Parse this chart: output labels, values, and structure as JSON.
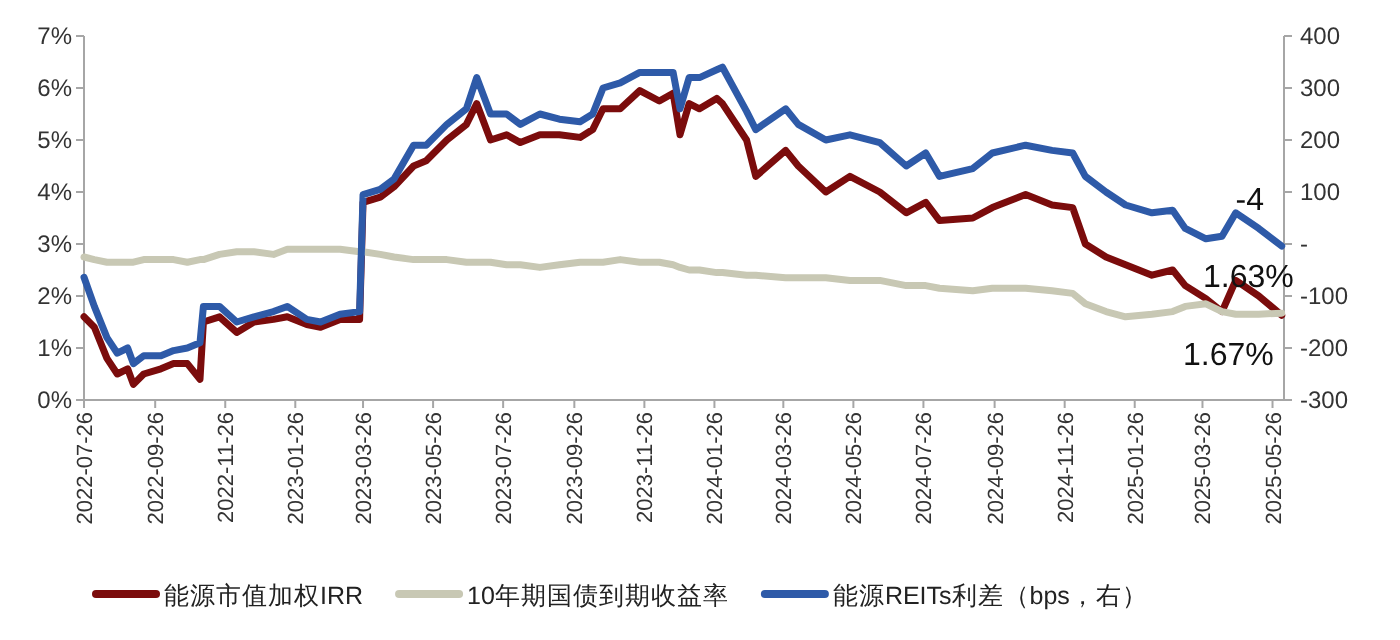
{
  "chart_data": {
    "type": "line",
    "x": [
      "2022-07-26",
      "2022-08-04",
      "2022-08-15",
      "2022-08-24",
      "2022-09-02",
      "2022-09-07",
      "2022-09-16",
      "2022-10-01",
      "2022-10-12",
      "2022-10-24",
      "2022-11-04",
      "2022-11-07",
      "2022-11-21",
      "2022-12-06",
      "2022-12-21",
      "2023-01-07",
      "2023-01-19",
      "2023-02-05",
      "2023-02-17",
      "2023-03-06",
      "2023-03-23",
      "2023-03-26",
      "2023-04-10",
      "2023-04-22",
      "2023-05-09",
      "2023-05-20",
      "2023-06-07",
      "2023-06-24",
      "2023-07-03",
      "2023-07-15",
      "2023-07-29",
      "2023-08-10",
      "2023-08-27",
      "2023-09-13",
      "2023-10-01",
      "2023-10-12",
      "2023-10-21",
      "2023-11-05",
      "2023-11-22",
      "2023-12-09",
      "2023-12-21",
      "2023-12-27",
      "2024-01-04",
      "2024-01-13",
      "2024-01-28",
      "2024-02-02",
      "2024-02-23",
      "2024-03-02",
      "2024-03-28",
      "2024-04-08",
      "2024-05-02",
      "2024-05-23",
      "2024-06-18",
      "2024-07-11",
      "2024-07-28",
      "2024-08-09",
      "2024-09-07",
      "2024-09-24",
      "2024-10-23",
      "2024-11-15",
      "2024-12-03",
      "2024-12-14",
      "2025-01-01",
      "2025-01-18",
      "2025-02-10",
      "2025-02-28",
      "2025-03-11",
      "2025-03-29",
      "2025-04-12",
      "2025-04-24",
      "2025-05-14",
      "2025-06-03"
    ],
    "series": [
      {
        "name": "能源市值加权IRR",
        "color": "#7b0c0c",
        "values": [
          1.6,
          1.4,
          0.8,
          0.5,
          0.6,
          0.3,
          0.5,
          0.6,
          0.7,
          0.7,
          0.4,
          1.5,
          1.6,
          1.3,
          1.5,
          1.55,
          1.6,
          1.45,
          1.4,
          1.55,
          1.55,
          3.8,
          3.9,
          4.1,
          4.5,
          4.6,
          5.0,
          5.3,
          5.7,
          5.0,
          5.1,
          4.95,
          5.1,
          5.1,
          5.05,
          5.2,
          5.6,
          5.6,
          5.95,
          5.75,
          5.9,
          5.1,
          5.7,
          5.6,
          5.8,
          5.7,
          5.0,
          4.3,
          4.8,
          4.5,
          4.0,
          4.3,
          4.0,
          3.6,
          3.8,
          3.45,
          3.5,
          3.7,
          3.95,
          3.75,
          3.7,
          3.0,
          2.75,
          2.6,
          2.4,
          2.5,
          2.2,
          1.95,
          1.7,
          2.3,
          2.0,
          1.63
        ]
      },
      {
        "name": "10年期国债到期收益率",
        "color": "#c8c8b4",
        "values": [
          2.75,
          2.7,
          2.65,
          2.65,
          2.65,
          2.65,
          2.7,
          2.7,
          2.7,
          2.65,
          2.7,
          2.7,
          2.8,
          2.85,
          2.85,
          2.8,
          2.9,
          2.9,
          2.9,
          2.9,
          2.85,
          2.85,
          2.8,
          2.75,
          2.7,
          2.7,
          2.7,
          2.65,
          2.65,
          2.65,
          2.6,
          2.6,
          2.55,
          2.6,
          2.65,
          2.65,
          2.65,
          2.7,
          2.65,
          2.65,
          2.6,
          2.55,
          2.5,
          2.5,
          2.45,
          2.45,
          2.4,
          2.4,
          2.35,
          2.35,
          2.35,
          2.3,
          2.3,
          2.2,
          2.2,
          2.15,
          2.1,
          2.15,
          2.15,
          2.1,
          2.05,
          1.85,
          1.7,
          1.6,
          1.65,
          1.7,
          1.8,
          1.85,
          1.7,
          1.65,
          1.65,
          1.67
        ]
      },
      {
        "name": "能源REITs利差（bps，右）",
        "color": "#2e5aa8",
        "axis": "y2",
        "values": [
          -64,
          -120,
          -180,
          -210,
          -200,
          -230,
          -215,
          -215,
          -205,
          -200,
          -190,
          -120,
          -120,
          -150,
          -140,
          -130,
          -120,
          -145,
          -150,
          -135,
          -130,
          95,
          105,
          125,
          190,
          190,
          230,
          260,
          320,
          250,
          250,
          230,
          250,
          240,
          235,
          250,
          300,
          310,
          330,
          330,
          330,
          260,
          320,
          320,
          335,
          340,
          255,
          220,
          260,
          230,
          200,
          210,
          195,
          150,
          175,
          130,
          145,
          175,
          190,
          180,
          175,
          130,
          100,
          75,
          60,
          65,
          30,
          10,
          15,
          60,
          30,
          -4
        ]
      }
    ],
    "xlim": [
      "2022-07-26",
      "2025-06-05"
    ],
    "xticks": [
      "2022-07-26",
      "2022-09-26",
      "2022-11-26",
      "2023-01-26",
      "2023-03-26",
      "2023-05-26",
      "2023-07-26",
      "2023-09-26",
      "2023-11-26",
      "2024-01-26",
      "2024-03-26",
      "2024-05-26",
      "2024-07-26",
      "2024-09-26",
      "2024-11-26",
      "2025-01-26",
      "2025-03-26",
      "2025-05-26"
    ],
    "ylim": [
      0,
      7
    ],
    "yticks": [
      {
        "value": 0,
        "label": "0%"
      },
      {
        "value": 1,
        "label": "1%"
      },
      {
        "value": 2,
        "label": "2%"
      },
      {
        "value": 3,
        "label": "3%"
      },
      {
        "value": 4,
        "label": "4%"
      },
      {
        "value": 5,
        "label": "5%"
      },
      {
        "value": 6,
        "label": "6%"
      },
      {
        "value": 7,
        "label": "7%"
      }
    ],
    "y2lim": [
      -300,
      400
    ],
    "y2ticks": [
      -300,
      -200,
      -100,
      {
        "value": 0,
        "label": "-"
      },
      100,
      200,
      300,
      400
    ],
    "annotations": [
      "1.63%",
      "1.67%",
      "-4"
    ],
    "legend": "bottom",
    "grid": false
  }
}
